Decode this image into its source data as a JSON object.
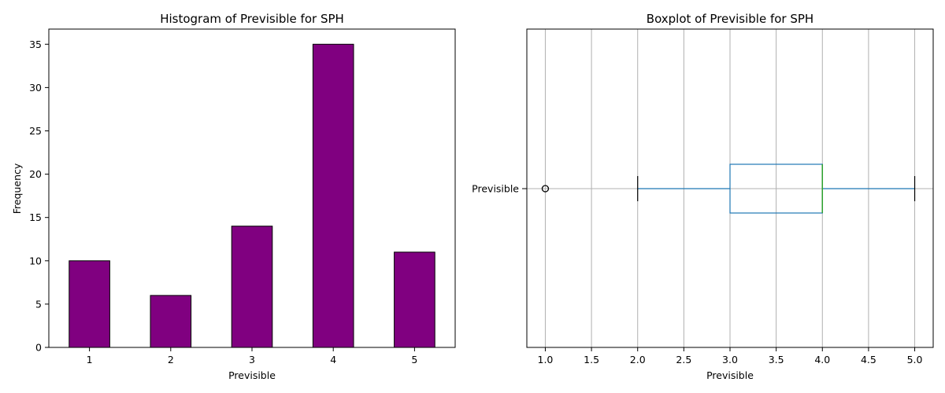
{
  "chart_data": [
    {
      "type": "bar",
      "title": "Histogram of Previsible for SPH",
      "xlabel": "Previsible",
      "ylabel": "Frequency",
      "categories": [
        "1",
        "2",
        "3",
        "4",
        "5"
      ],
      "values": [
        10,
        6,
        14,
        35,
        11
      ],
      "ylim": [
        0,
        36.75
      ],
      "yticks": [
        0,
        5,
        10,
        15,
        20,
        25,
        30,
        35
      ],
      "grid": false,
      "bar_color": "#800080",
      "edge_color": "#000000"
    },
    {
      "type": "boxplot",
      "orientation": "horizontal",
      "title": "Boxplot of Previsible for SPH",
      "xlabel": "Previsible",
      "category": "Previsible",
      "whisker_low": 2.0,
      "q1": 3.0,
      "median": 4.0,
      "q3": 4.0,
      "whisker_high": 5.0,
      "outliers": [
        1.0
      ],
      "xlim": [
        0.8,
        5.2
      ],
      "xticks": [
        "1.0",
        "1.5",
        "2.0",
        "2.5",
        "3.0",
        "3.5",
        "4.0",
        "4.5",
        "5.0"
      ],
      "grid": true,
      "box_color": "#1f77b4",
      "median_color": "#2ca02c",
      "grid_color": "#b0b0b0"
    }
  ]
}
